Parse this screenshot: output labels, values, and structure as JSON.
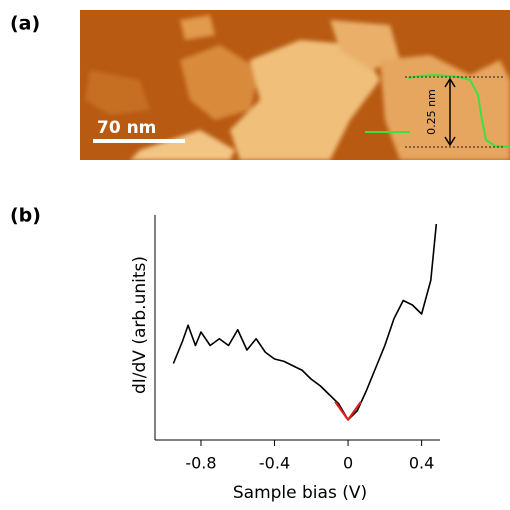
{
  "panel_a": {
    "label": "(a)",
    "scale_bar": "70 nm",
    "step_height": "0.25 nm"
  },
  "panel_b": {
    "label": "(b)"
  },
  "chart_data": {
    "type": "line",
    "xlabel": "Sample bias (V)",
    "ylabel": "dI/dV (arb.units)",
    "xlim": [
      -1.05,
      0.5
    ],
    "xticks": [
      -0.8,
      -0.4,
      0,
      0.4
    ],
    "ylim": [
      0,
      1
    ],
    "series": [
      {
        "color": "#000000",
        "x": [
          -0.95,
          -0.9,
          -0.87,
          -0.83,
          -0.8,
          -0.75,
          -0.7,
          -0.65,
          -0.6,
          -0.55,
          -0.5,
          -0.45,
          -0.4,
          -0.35,
          -0.3,
          -0.25,
          -0.2,
          -0.15,
          -0.1,
          -0.05,
          0,
          0.05,
          0.1,
          0.15,
          0.2,
          0.25,
          0.3,
          0.35,
          0.4,
          0.45,
          0.48
        ],
        "values": [
          0.34,
          0.44,
          0.51,
          0.42,
          0.48,
          0.42,
          0.45,
          0.42,
          0.49,
          0.4,
          0.45,
          0.39,
          0.36,
          0.35,
          0.33,
          0.31,
          0.27,
          0.24,
          0.2,
          0.16,
          0.09,
          0.13,
          0.22,
          0.32,
          0.42,
          0.54,
          0.62,
          0.6,
          0.56,
          0.71,
          0.96
        ]
      },
      {
        "color": "#e0201b",
        "x": [
          -0.07,
          0,
          0.07
        ],
        "values": [
          0.17,
          0.09,
          0.17
        ]
      }
    ]
  }
}
